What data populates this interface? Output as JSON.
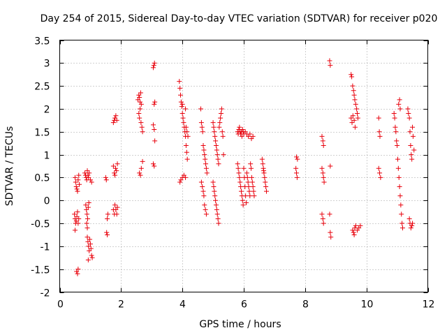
{
  "chart_data": {
    "type": "scatter",
    "title": "Day 254 of 2015, Sidereal Day-to-day VTEC variation (SDTVAR) for receiver p020",
    "xlabel": "GPS time / hours",
    "ylabel": "SDTVAR / TECUs",
    "xlim": [
      0,
      12
    ],
    "ylim": [
      -2,
      3.5
    ],
    "xticks": [
      0,
      2,
      4,
      6,
      8,
      10,
      12
    ],
    "yticks": [
      -2,
      -1.5,
      -1,
      -0.5,
      0,
      0.5,
      1,
      1.5,
      2,
      2.5,
      3,
      3.5
    ],
    "xtick_labels": [
      "0",
      "2",
      "4",
      "6",
      "8",
      "10",
      "12"
    ],
    "ytick_labels": [
      "-2",
      "-1.5",
      "-1",
      "-0.5",
      "0",
      "0.5",
      "1",
      "1.5",
      "2",
      "2.5",
      "3",
      "3.5"
    ],
    "grid": true,
    "marker": "+",
    "color": "#e8000b",
    "series": [
      {
        "name": "SDTVAR",
        "points": [
          [
            0.5,
            0.5
          ],
          [
            0.52,
            0.4
          ],
          [
            0.54,
            0.3
          ],
          [
            0.56,
            0.25
          ],
          [
            0.58,
            0.2
          ],
          [
            0.6,
            0.45
          ],
          [
            0.62,
            0.55
          ],
          [
            0.64,
            0.35
          ],
          [
            0.48,
            -0.3
          ],
          [
            0.5,
            -0.4
          ],
          [
            0.52,
            -0.5
          ],
          [
            0.54,
            -0.45
          ],
          [
            0.56,
            -0.35
          ],
          [
            0.58,
            -0.25
          ],
          [
            0.6,
            -0.5
          ],
          [
            0.62,
            -0.4
          ],
          [
            0.5,
            -0.65
          ],
          [
            0.55,
            -1.55
          ],
          [
            0.58,
            -1.6
          ],
          [
            0.6,
            -1.5
          ],
          [
            0.82,
            0.6
          ],
          [
            0.84,
            0.55
          ],
          [
            0.86,
            0.5
          ],
          [
            0.88,
            0.45
          ],
          [
            0.9,
            0.65
          ],
          [
            0.92,
            0.55
          ],
          [
            0.94,
            0.5
          ],
          [
            0.96,
            0.6
          ],
          [
            1.0,
            0.45
          ],
          [
            1.04,
            0.4
          ],
          [
            0.85,
            -0.1
          ],
          [
            0.87,
            -0.2
          ],
          [
            0.89,
            -0.3
          ],
          [
            0.91,
            -0.4
          ],
          [
            0.93,
            -0.15
          ],
          [
            0.95,
            -0.05
          ],
          [
            0.88,
            -0.5
          ],
          [
            0.9,
            -0.6
          ],
          [
            0.9,
            -0.8
          ],
          [
            0.92,
            -0.9
          ],
          [
            0.94,
            -1.0
          ],
          [
            0.96,
            -1.1
          ],
          [
            0.98,
            -0.85
          ],
          [
            1.0,
            -0.95
          ],
          [
            1.02,
            -1.05
          ],
          [
            1.04,
            -1.2
          ],
          [
            1.06,
            -1.25
          ],
          [
            0.93,
            -1.3
          ],
          [
            1.5,
            0.5
          ],
          [
            1.52,
            0.45
          ],
          [
            1.55,
            -0.4
          ],
          [
            1.57,
            -0.3
          ],
          [
            1.53,
            -0.7
          ],
          [
            1.55,
            -0.75
          ],
          [
            1.75,
            0.75
          ],
          [
            1.78,
            0.6
          ],
          [
            1.8,
            0.55
          ],
          [
            1.82,
            0.7
          ],
          [
            1.85,
            0.65
          ],
          [
            1.88,
            0.8
          ],
          [
            1.75,
            1.7
          ],
          [
            1.78,
            1.75
          ],
          [
            1.8,
            1.8
          ],
          [
            1.83,
            1.85
          ],
          [
            1.86,
            1.75
          ],
          [
            1.75,
            -0.2
          ],
          [
            1.78,
            -0.3
          ],
          [
            1.8,
            -0.1
          ],
          [
            1.83,
            -0.2
          ],
          [
            1.86,
            -0.3
          ],
          [
            1.88,
            -0.15
          ],
          [
            2.55,
            2.2
          ],
          [
            2.58,
            2.3
          ],
          [
            2.6,
            2.25
          ],
          [
            2.62,
            2.15
          ],
          [
            2.64,
            2.35
          ],
          [
            2.66,
            2.1
          ],
          [
            2.58,
            1.9
          ],
          [
            2.6,
            1.8
          ],
          [
            2.62,
            2.0
          ],
          [
            2.65,
            1.7
          ],
          [
            2.68,
            1.6
          ],
          [
            2.7,
            1.5
          ],
          [
            2.6,
            0.6
          ],
          [
            2.63,
            0.55
          ],
          [
            2.66,
            0.7
          ],
          [
            2.7,
            0.85
          ],
          [
            3.05,
            2.9
          ],
          [
            3.07,
            2.95
          ],
          [
            3.09,
            3.0
          ],
          [
            3.08,
            2.1
          ],
          [
            3.1,
            2.15
          ],
          [
            3.05,
            1.65
          ],
          [
            3.08,
            1.55
          ],
          [
            3.1,
            1.3
          ],
          [
            3.05,
            0.8
          ],
          [
            3.08,
            0.75
          ],
          [
            3.9,
            2.6
          ],
          [
            3.92,
            2.45
          ],
          [
            3.94,
            2.3
          ],
          [
            3.96,
            2.15
          ],
          [
            3.98,
            2.05
          ],
          [
            4.0,
            1.9
          ],
          [
            4.02,
            1.8
          ],
          [
            4.04,
            1.7
          ],
          [
            4.06,
            1.6
          ],
          [
            4.08,
            1.5
          ],
          [
            4.1,
            1.4
          ],
          [
            4.12,
            1.2
          ],
          [
            4.14,
            1.05
          ],
          [
            4.16,
            0.9
          ],
          [
            4.0,
            2.1
          ],
          [
            4.1,
            2.0
          ],
          [
            3.92,
            0.4
          ],
          [
            3.95,
            0.45
          ],
          [
            4.0,
            0.5
          ],
          [
            4.05,
            0.55
          ],
          [
            4.1,
            0.5
          ],
          [
            4.12,
            1.6
          ],
          [
            4.15,
            1.5
          ],
          [
            4.18,
            1.4
          ],
          [
            4.6,
            2.0
          ],
          [
            4.62,
            1.7
          ],
          [
            4.64,
            1.6
          ],
          [
            4.66,
            1.5
          ],
          [
            4.68,
            1.2
          ],
          [
            4.7,
            1.1
          ],
          [
            4.72,
            1.0
          ],
          [
            4.74,
            0.9
          ],
          [
            4.76,
            0.8
          ],
          [
            4.78,
            0.7
          ],
          [
            4.8,
            0.6
          ],
          [
            4.62,
            0.4
          ],
          [
            4.65,
            0.3
          ],
          [
            4.68,
            0.2
          ],
          [
            4.7,
            0.1
          ],
          [
            4.72,
            -0.1
          ],
          [
            4.75,
            -0.2
          ],
          [
            4.78,
            -0.3
          ],
          [
            5.0,
            1.7
          ],
          [
            5.02,
            1.6
          ],
          [
            5.04,
            1.5
          ],
          [
            5.06,
            1.4
          ],
          [
            5.08,
            1.3
          ],
          [
            5.1,
            1.2
          ],
          [
            5.12,
            1.1
          ],
          [
            5.14,
            1.0
          ],
          [
            5.16,
            0.9
          ],
          [
            5.18,
            0.8
          ],
          [
            5.0,
            0.4
          ],
          [
            5.02,
            0.3
          ],
          [
            5.04,
            0.2
          ],
          [
            5.06,
            0.1
          ],
          [
            5.08,
            0.0
          ],
          [
            5.1,
            -0.1
          ],
          [
            5.12,
            -0.2
          ],
          [
            5.14,
            -0.3
          ],
          [
            5.16,
            -0.4
          ],
          [
            5.18,
            -0.5
          ],
          [
            5.2,
            1.6
          ],
          [
            5.22,
            1.7
          ],
          [
            5.24,
            1.8
          ],
          [
            5.26,
            1.9
          ],
          [
            5.28,
            2.0
          ],
          [
            5.3,
            1.5
          ],
          [
            5.32,
            1.4
          ],
          [
            5.34,
            1.0
          ],
          [
            5.8,
            1.5
          ],
          [
            5.82,
            1.45
          ],
          [
            5.84,
            1.55
          ],
          [
            5.86,
            1.6
          ],
          [
            5.88,
            1.5
          ],
          [
            5.9,
            1.45
          ],
          [
            5.92,
            1.5
          ],
          [
            5.94,
            1.4
          ],
          [
            5.96,
            1.55
          ],
          [
            5.98,
            1.5
          ],
          [
            6.0,
            1.45
          ],
          [
            6.05,
            1.5
          ],
          [
            6.1,
            1.45
          ],
          [
            6.15,
            1.4
          ],
          [
            6.2,
            1.45
          ],
          [
            6.25,
            1.35
          ],
          [
            6.3,
            1.4
          ],
          [
            5.8,
            0.8
          ],
          [
            5.82,
            0.7
          ],
          [
            5.84,
            0.6
          ],
          [
            5.86,
            0.5
          ],
          [
            5.88,
            0.4
          ],
          [
            5.9,
            0.3
          ],
          [
            5.92,
            0.2
          ],
          [
            5.94,
            0.1
          ],
          [
            5.96,
            0.0
          ],
          [
            5.98,
            -0.1
          ],
          [
            6.0,
            0.7
          ],
          [
            6.02,
            0.5
          ],
          [
            6.04,
            0.3
          ],
          [
            6.06,
            0.1
          ],
          [
            6.08,
            -0.05
          ],
          [
            6.1,
            0.6
          ],
          [
            6.12,
            0.5
          ],
          [
            6.14,
            0.4
          ],
          [
            6.16,
            0.3
          ],
          [
            6.18,
            0.2
          ],
          [
            6.2,
            0.1
          ],
          [
            6.22,
            0.8
          ],
          [
            6.24,
            0.7
          ],
          [
            6.26,
            0.5
          ],
          [
            6.28,
            0.4
          ],
          [
            6.3,
            0.3
          ],
          [
            6.32,
            0.2
          ],
          [
            6.34,
            0.1
          ],
          [
            6.6,
            0.9
          ],
          [
            6.62,
            0.8
          ],
          [
            6.64,
            0.7
          ],
          [
            6.66,
            0.6
          ],
          [
            6.68,
            0.5
          ],
          [
            6.7,
            0.4
          ],
          [
            6.72,
            0.3
          ],
          [
            6.74,
            0.2
          ],
          [
            6.65,
            0.65
          ],
          [
            7.72,
            0.95
          ],
          [
            7.75,
            0.9
          ],
          [
            7.7,
            0.7
          ],
          [
            7.72,
            0.6
          ],
          [
            7.74,
            0.5
          ],
          [
            8.55,
            1.4
          ],
          [
            8.58,
            1.3
          ],
          [
            8.6,
            1.2
          ],
          [
            8.55,
            0.7
          ],
          [
            8.58,
            0.6
          ],
          [
            8.6,
            0.5
          ],
          [
            8.62,
            0.4
          ],
          [
            8.55,
            -0.3
          ],
          [
            8.58,
            -0.4
          ],
          [
            8.6,
            -0.5
          ],
          [
            8.8,
            3.05
          ],
          [
            8.82,
            2.95
          ],
          [
            8.82,
            0.75
          ],
          [
            8.8,
            -0.3
          ],
          [
            8.82,
            -0.7
          ],
          [
            8.84,
            -0.8
          ],
          [
            9.5,
            2.75
          ],
          [
            9.52,
            2.7
          ],
          [
            9.55,
            2.5
          ],
          [
            9.58,
            2.4
          ],
          [
            9.6,
            2.3
          ],
          [
            9.62,
            2.2
          ],
          [
            9.65,
            2.1
          ],
          [
            9.68,
            2.0
          ],
          [
            9.7,
            1.9
          ],
          [
            9.72,
            1.8
          ],
          [
            9.5,
            1.8
          ],
          [
            9.53,
            1.7
          ],
          [
            9.56,
            1.85
          ],
          [
            9.6,
            1.75
          ],
          [
            9.63,
            1.6
          ],
          [
            9.55,
            -0.65
          ],
          [
            9.58,
            -0.7
          ],
          [
            9.6,
            -0.75
          ],
          [
            9.62,
            -0.6
          ],
          [
            9.65,
            -0.55
          ],
          [
            9.7,
            -0.65
          ],
          [
            9.75,
            -0.6
          ],
          [
            9.8,
            -0.55
          ],
          [
            10.4,
            1.8
          ],
          [
            10.42,
            1.5
          ],
          [
            10.44,
            1.4
          ],
          [
            10.4,
            0.7
          ],
          [
            10.43,
            0.6
          ],
          [
            10.46,
            0.5
          ],
          [
            10.9,
            1.9
          ],
          [
            10.92,
            1.8
          ],
          [
            10.94,
            1.6
          ],
          [
            10.96,
            1.5
          ],
          [
            10.98,
            1.3
          ],
          [
            11.0,
            1.2
          ],
          [
            11.02,
            0.9
          ],
          [
            11.04,
            0.7
          ],
          [
            11.06,
            0.5
          ],
          [
            11.08,
            0.3
          ],
          [
            11.1,
            0.1
          ],
          [
            11.12,
            -0.1
          ],
          [
            11.14,
            -0.3
          ],
          [
            11.16,
            -0.5
          ],
          [
            11.18,
            -0.6
          ],
          [
            11.05,
            2.1
          ],
          [
            11.08,
            2.2
          ],
          [
            11.1,
            2.0
          ],
          [
            11.35,
            2.0
          ],
          [
            11.37,
            1.9
          ],
          [
            11.4,
            1.8
          ],
          [
            11.42,
            1.5
          ],
          [
            11.44,
            1.2
          ],
          [
            11.46,
            1.0
          ],
          [
            11.48,
            0.9
          ],
          [
            11.5,
            1.6
          ],
          [
            11.52,
            1.4
          ],
          [
            11.55,
            1.1
          ],
          [
            11.4,
            -0.4
          ],
          [
            11.42,
            -0.5
          ],
          [
            11.45,
            -0.6
          ],
          [
            11.48,
            -0.55
          ],
          [
            11.5,
            -0.5
          ]
        ]
      }
    ]
  }
}
